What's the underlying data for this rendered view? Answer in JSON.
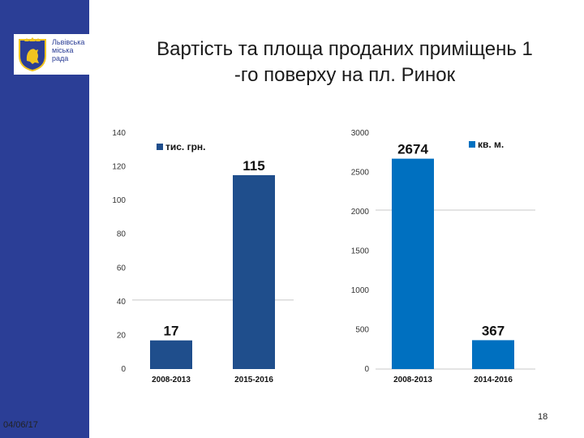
{
  "slide": {
    "title": "Вартість та площа проданих приміщень 1 -го поверху на пл. Ринок",
    "title_line1": "Вартість та площа проданих приміщень 1",
    "title_line2": "-го поверху на пл. Ринок",
    "date": "04/06/17",
    "page_number": "18",
    "colors": {
      "band": "#2b3e96",
      "bar_left": "#1f4e8c",
      "bar_right": "#0070c0"
    }
  },
  "logo": {
    "icon": "lviv-coat-of-arms-icon",
    "line1": "Львівська",
    "line2": "міська",
    "line3": "рада"
  },
  "chart_data": [
    {
      "type": "bar",
      "categories": [
        "2008-2013",
        "2015-2016"
      ],
      "series": [
        {
          "name": "тис. грн.",
          "values": [
            17,
            115
          ]
        }
      ],
      "ylim": [
        0,
        140
      ],
      "yticks": [
        0,
        20,
        40,
        60,
        80,
        100,
        120,
        140
      ],
      "grid": false,
      "legend": "top-left"
    },
    {
      "type": "bar",
      "categories": [
        "2008-2013",
        "2014-2016"
      ],
      "series": [
        {
          "name": "кв. м.",
          "values": [
            2674,
            367
          ]
        }
      ],
      "ylim": [
        0,
        3000
      ],
      "yticks": [
        0,
        500,
        1000,
        1500,
        2000,
        2500,
        3000
      ],
      "grid": false,
      "legend": "top-right"
    }
  ]
}
